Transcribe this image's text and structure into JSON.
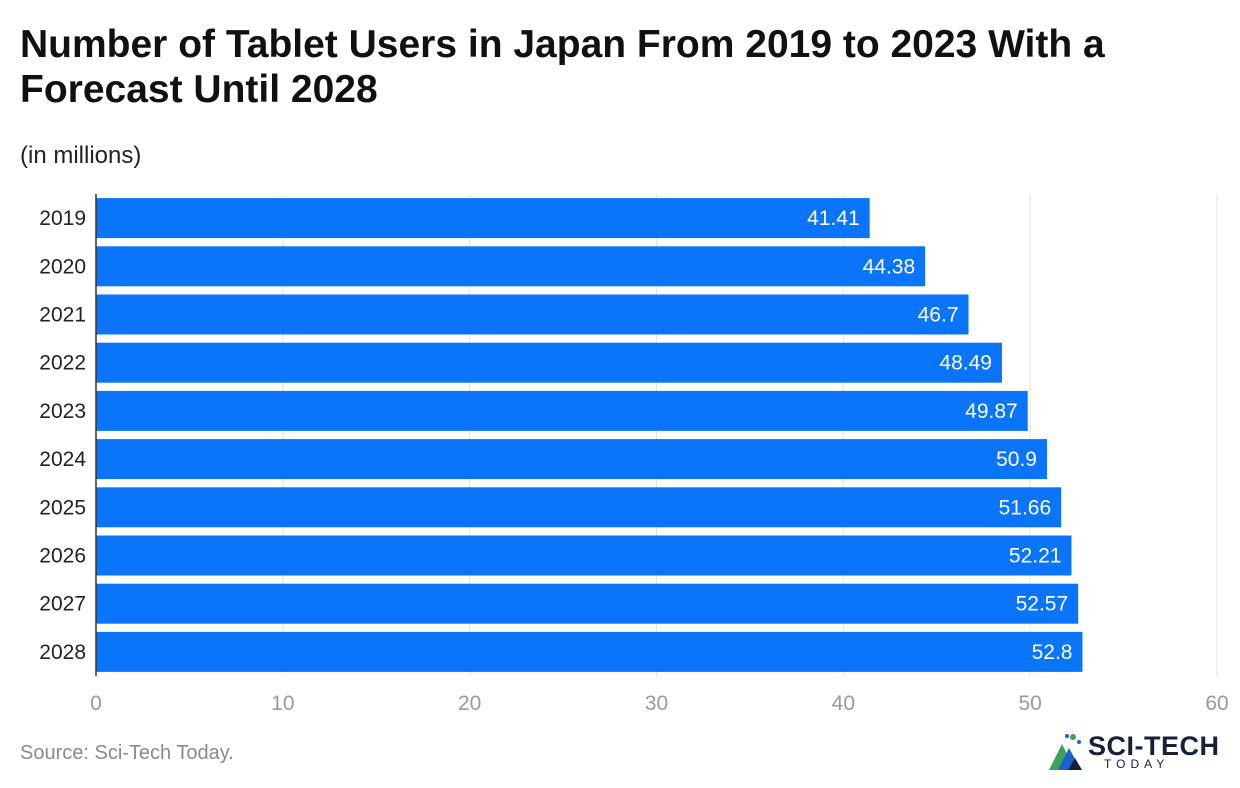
{
  "title": "Number of Tablet Users in Japan From 2019 to 2023 With a Forecast Until 2028",
  "subtitle": "(in millions)",
  "source": "Source: Sci-Tech Today.",
  "logo": {
    "word": "SCI-TECH",
    "sub": "TODAY"
  },
  "colors": {
    "bar": "#0a74fb",
    "grid": "#e3e3e3",
    "axis_text": "#9a9a9a",
    "category_text": "#222222",
    "label_text": "#ffffff"
  },
  "chart_data": {
    "type": "bar",
    "orientation": "horizontal",
    "categories": [
      "2019",
      "2020",
      "2021",
      "2022",
      "2023",
      "2024",
      "2025",
      "2026",
      "2027",
      "2028"
    ],
    "values": [
      41.41,
      44.38,
      46.7,
      48.49,
      49.87,
      50.9,
      51.66,
      52.21,
      52.57,
      52.8
    ],
    "value_labels": [
      "41.41",
      "44.38",
      "46.7",
      "48.49",
      "49.87",
      "50.9",
      "51.66",
      "52.21",
      "52.57",
      "52.8"
    ],
    "xlim": [
      0,
      60
    ],
    "xticks": [
      0,
      10,
      20,
      30,
      40,
      50,
      60
    ],
    "grid": true
  }
}
